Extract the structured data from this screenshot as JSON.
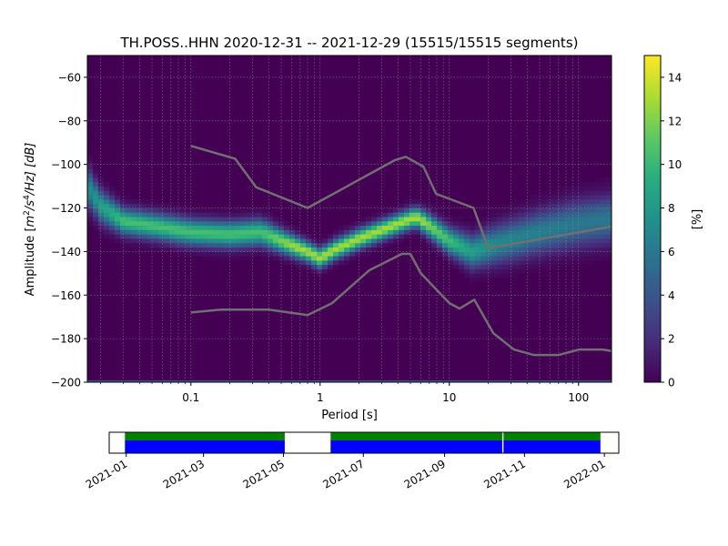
{
  "chart_data": [
    {
      "type": "heatmap",
      "title": "TH.POSS..HHN   2020-12-31 -- 2021-12-29  (15515/15515 segments)",
      "xlabel": "Period [s]",
      "ylabel_parts": {
        "pre": "Amplitude [",
        "m": "m",
        "sup1": "2",
        "mid": "/s",
        "sup2": "4",
        "end": "/Hz] [dB]"
      },
      "x_scale": "log",
      "xlim": [
        0.0158,
        180
      ],
      "ylim": [
        -200,
        -50
      ],
      "x_ticks": [
        0.1,
        1,
        10,
        100
      ],
      "x_tick_labels": [
        "0.1",
        "1",
        "10",
        "100"
      ],
      "y_ticks": [
        -60,
        -80,
        -100,
        -120,
        -140,
        -160,
        -180,
        -200
      ],
      "y_tick_labels": [
        "−60",
        "−80",
        "−100",
        "−120",
        "−140",
        "−160",
        "−180",
        "−200"
      ],
      "grid": true,
      "colorbar": {
        "label": "[%]",
        "range": [
          0,
          15
        ],
        "ticks": [
          0,
          2,
          4,
          6,
          8,
          10,
          12,
          14
        ],
        "tick_labels": [
          "0",
          "2",
          "4",
          "6",
          "8",
          "10",
          "12",
          "14"
        ]
      },
      "ridge": {
        "x": [
          0.0158,
          0.02,
          0.03,
          0.05,
          0.1,
          0.2,
          0.35,
          0.5,
          0.8,
          1.0,
          1.3,
          2.0,
          3.0,
          4.5,
          5.5,
          7.0,
          10.0,
          15.0,
          25.0,
          50.0,
          100.0,
          180.0
        ],
        "y": [
          -110,
          -119,
          -126,
          -128,
          -131,
          -132,
          -131,
          -135,
          -140,
          -143,
          -139,
          -134,
          -130,
          -126,
          -124,
          -128,
          -135,
          -140,
          -136,
          -131,
          -127,
          -125
        ],
        "width_db": [
          6,
          5,
          4,
          4,
          4,
          4,
          4,
          3.5,
          3,
          3,
          3,
          3,
          3,
          3,
          3,
          3.5,
          4,
          5,
          6,
          6.5,
          7,
          7
        ]
      },
      "noise_models": [
        {
          "x": [
            0.1,
            0.22,
            0.32,
            0.8,
            3.8,
            4.6,
            6.3,
            7.9,
            15.4,
            20,
            180
          ],
          "y": [
            -91.5,
            -97.4,
            -110.5,
            -120,
            -98,
            -96.5,
            -101,
            -113.5,
            -120,
            -138.5,
            -128.5
          ]
        },
        {
          "x": [
            0.1,
            0.17,
            0.4,
            0.8,
            1.24,
            2.4,
            4.3,
            5,
            6,
            10,
            12,
            15.6,
            21.9,
            31.6,
            45,
            70,
            101,
            154,
            180
          ],
          "y": [
            -168,
            -166.7,
            -166.7,
            -169.2,
            -163.7,
            -148.6,
            -141.1,
            -141.1,
            -149.9,
            -163.7,
            -166.2,
            -162.1,
            -177.5,
            -185,
            -187.5,
            -187.5,
            -185,
            -185,
            -185.7
          ]
        }
      ]
    },
    {
      "type": "timeline",
      "x_tick_labels": [
        "2021-01",
        "2021-03",
        "2021-05",
        "2021-07",
        "2021-09",
        "2021-11",
        "2022-01"
      ],
      "x_ticks": [
        "2021-01-01",
        "2021-03-01",
        "2021-05-01",
        "2021-07-01",
        "2021-09-01",
        "2021-11-01",
        "2022-01-01"
      ],
      "xlim": [
        "2020-12-19",
        "2022-01-12"
      ],
      "data_intervals": [
        [
          "2020-12-31",
          "2021-05-02"
        ],
        [
          "2021-06-06",
          "2021-10-15"
        ],
        [
          "2021-10-16",
          "2021-12-29"
        ]
      ],
      "colors": {
        "top_band": "#008000",
        "bottom_band": "#0000ff"
      }
    }
  ]
}
